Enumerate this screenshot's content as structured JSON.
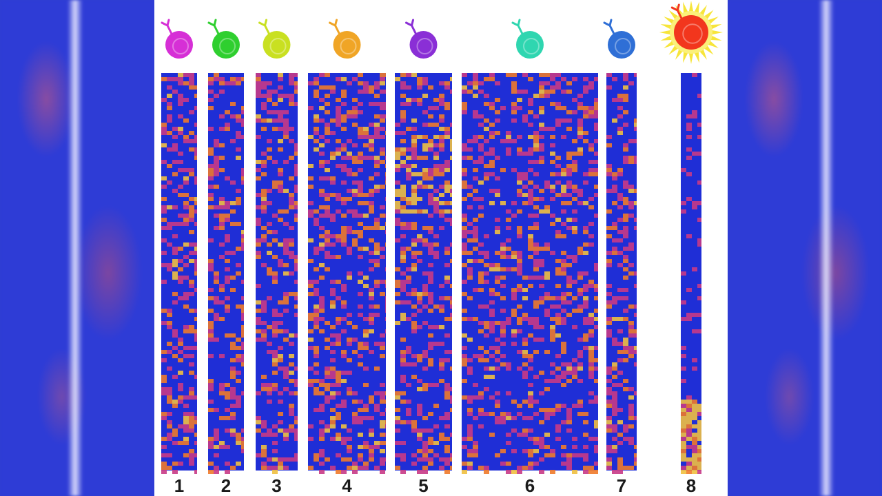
{
  "columns": [
    {
      "label": "1",
      "cell_color": "#d62fd6",
      "x0": 10,
      "x1": 62
    },
    {
      "label": "2",
      "cell_color": "#2fcf2f",
      "x0": 78,
      "x1": 130
    },
    {
      "label": "3",
      "cell_color": "#c9e021",
      "x0": 147,
      "x1": 208
    },
    {
      "label": "4",
      "cell_color": "#f0a526",
      "x0": 223,
      "x1": 336
    },
    {
      "label": "5",
      "cell_color": "#8a2fd6",
      "x0": 349,
      "x1": 432
    },
    {
      "label": "6",
      "cell_color": "#2fd6b0",
      "x0": 446,
      "x1": 644
    },
    {
      "label": "7",
      "cell_color": "#2f6fd6",
      "x0": 656,
      "x1": 700
    },
    {
      "label": "8",
      "cell_color": "#f2361d",
      "x0": 764,
      "x1": 794,
      "activated": true
    }
  ],
  "heatmap_colors": {
    "low": "#1f2ed6",
    "mid": "#c83a86",
    "high": "#f07a2a",
    "peak": "#f0c040"
  }
}
